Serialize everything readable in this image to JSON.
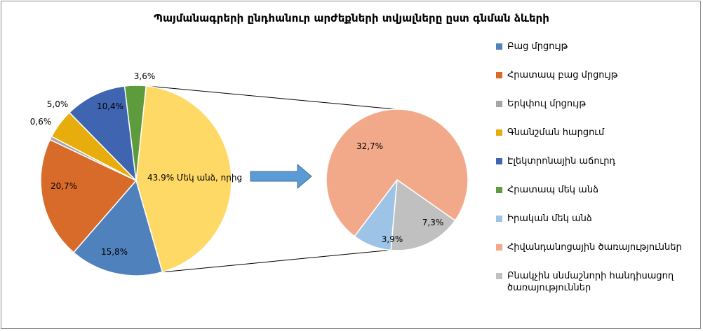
{
  "chart_data": {
    "type": "pie",
    "title": "Պայմանագրերի ընդհանուր արժեքների տվյալները ըստ գնման ձևերի",
    "main_pie": {
      "slices": [
        {
          "name": "Բաց մրցույթ",
          "value": 15.8,
          "label": "15,8%",
          "color": "#4f81bd"
        },
        {
          "name": "Հրատապ բաց մրցույթ",
          "value": 20.7,
          "label": "20,7%",
          "color": "#d86b2a"
        },
        {
          "name": "Երկփուլ մրցույթ",
          "value": 0.6,
          "label": "0,6%",
          "color": "#a5a5a5"
        },
        {
          "name": "Գնանշման հարցում",
          "value": 5.0,
          "label": "5,0%",
          "color": "#e6ad0c"
        },
        {
          "name": "Էլեկտրոնային աճուրդ",
          "value": 10.4,
          "label": "10,4%",
          "color": "#3f64b0"
        },
        {
          "name": "Հրատապ մեկ անձ",
          "value": 3.6,
          "label": "3,6%",
          "color": "#5e9b3c"
        },
        {
          "name": "Մեկ անձ, որից",
          "value": 43.9,
          "label": "43.9% Մեկ անձ, որից",
          "color": "#ffd966"
        }
      ]
    },
    "secondary_pie": {
      "slices": [
        {
          "name": "Իրական մեկ անձ",
          "value": 3.9,
          "label": "3,9%",
          "color": "#9dc3e6"
        },
        {
          "name": "Հիվանդանոցային ծառայություններ",
          "value": 32.7,
          "label": "32,7%",
          "color": "#f2a989"
        },
        {
          "name": "Բնակչին սնմաշնորի հանդիսացող ծառայություններ",
          "value": 7.3,
          "label": "7,3%",
          "color": "#c0c0c0"
        }
      ]
    },
    "legend": {
      "position": "right",
      "items": [
        {
          "label": "Բաց մրցույթ",
          "color": "#4f81bd"
        },
        {
          "label": "Հրատապ բաց մրցույթ",
          "color": "#d86b2a"
        },
        {
          "label": "Երկփուլ մրցույթ",
          "color": "#a5a5a5"
        },
        {
          "label": "Գնանշման հարցում",
          "color": "#e6ad0c"
        },
        {
          "label": "Էլեկտրոնային աճուրդ",
          "color": "#3f64b0"
        },
        {
          "label": "Հրատապ մեկ անձ",
          "color": "#5e9b3c"
        },
        {
          "label": "Իրական մեկ անձ",
          "color": "#9dc3e6"
        },
        {
          "label": "Հիվանդանոցային ծառայություններ",
          "color": "#f2a989"
        },
        {
          "label": "Բնակչին սնմաշնորի հանդիսացող ծառայություններ",
          "color": "#c0c0c0"
        }
      ]
    },
    "arrow_color": "#5b9bd5"
  }
}
